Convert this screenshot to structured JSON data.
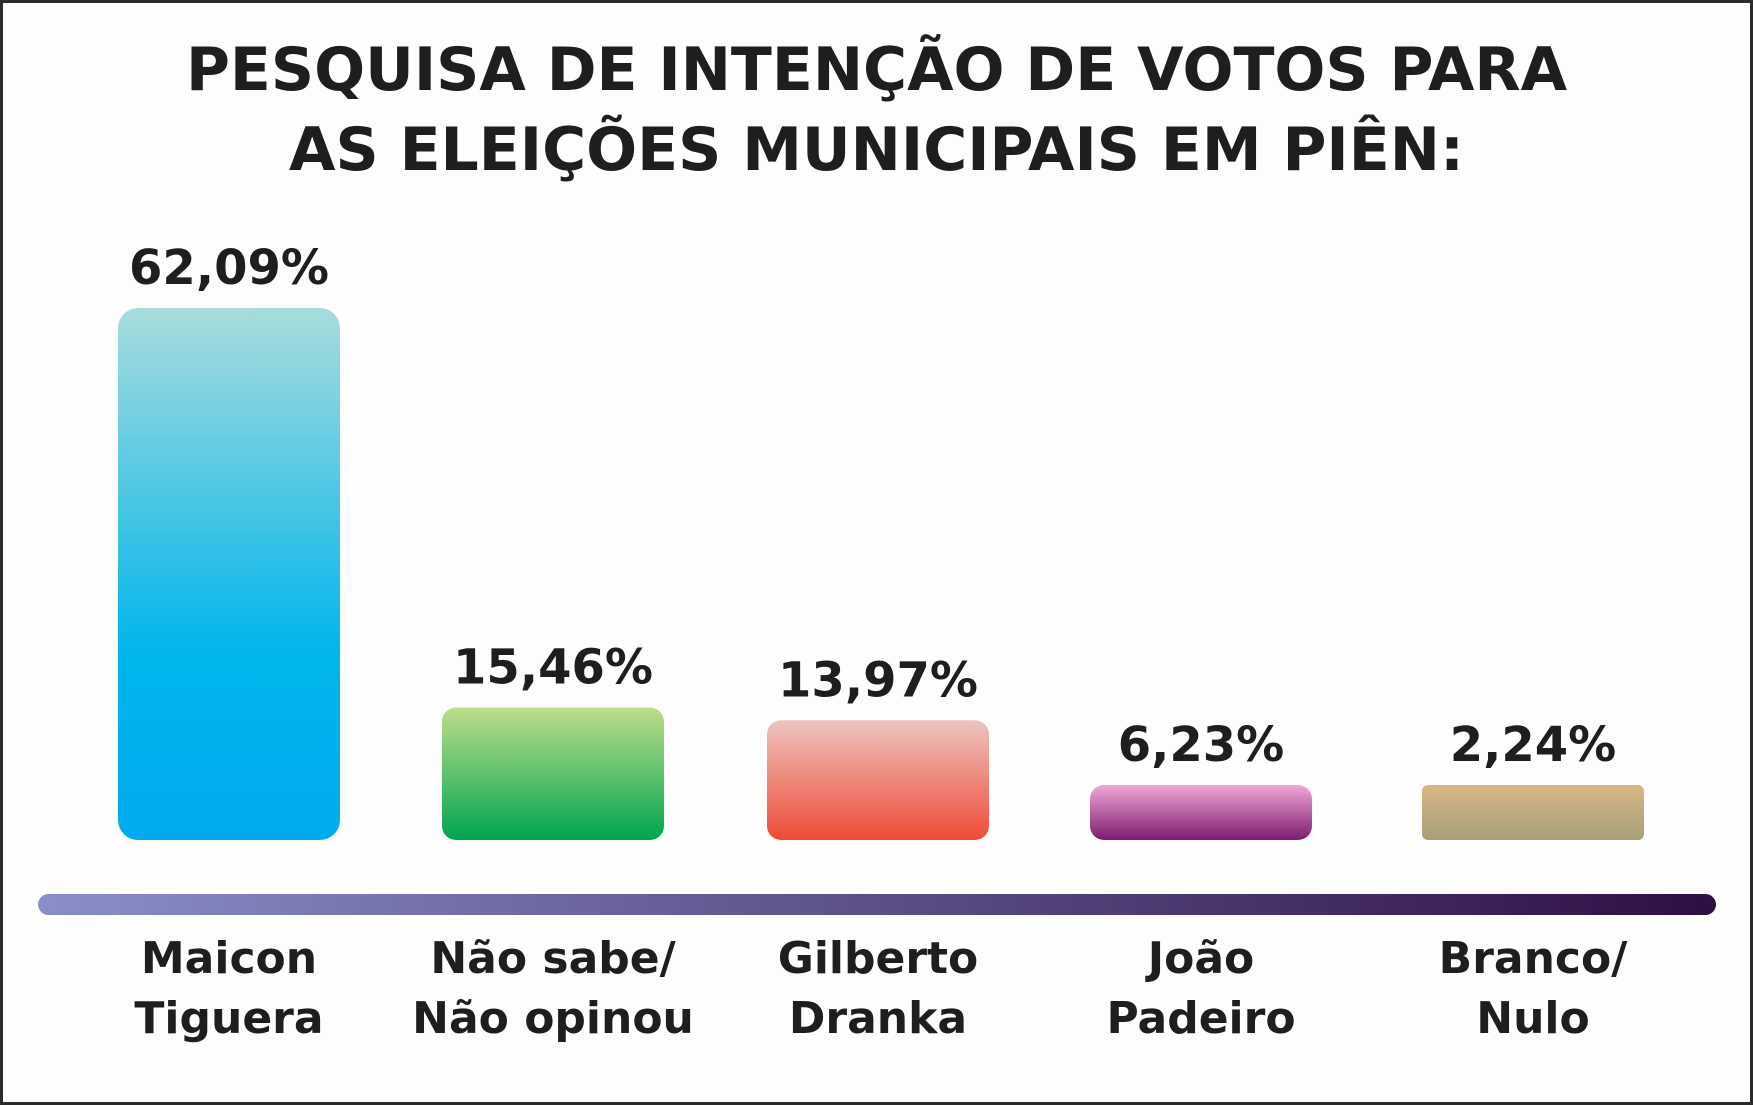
{
  "chart_data": {
    "type": "bar",
    "title": "PESQUISA DE INTENÇÃO DE VOTOS PARA AS ELEIÇÕES MUNICIPAIS EM PIÊN:",
    "title_lines": [
      "PESQUISA DE INTENÇÃO DE VOTOS PARA",
      "AS ELEIÇÕES MUNICIPAIS EM PIÊN:"
    ],
    "xlabel": "",
    "ylabel": "",
    "ylim": [
      0,
      62.09
    ],
    "grid": false,
    "legend": "none",
    "categories": [
      [
        "Maicon",
        "Tiguera"
      ],
      [
        "Não sabe/",
        "Não opinou"
      ],
      [
        "Gilberto",
        "Dranka"
      ],
      [
        "João",
        "Padeiro"
      ],
      [
        "Branco/",
        "Nulo"
      ]
    ],
    "values": [
      62.09,
      15.46,
      13.97,
      6.23,
      2.24
    ],
    "value_labels": [
      "62,09%",
      "15,46%",
      "13,97%",
      "6,23%",
      "2,24%"
    ],
    "colors": [
      [
        "#a9dcdc",
        "#00b5ec"
      ],
      [
        "#bedd8c",
        "#00a54f"
      ],
      [
        "#ecc4c0",
        "#ef4b36"
      ],
      [
        "#efa8d6",
        "#7e1b6f"
      ],
      [
        "#d8b785",
        "#a6a07a"
      ]
    ],
    "axis_gradient": [
      "#8a8fc9",
      "#2e0f45"
    ]
  }
}
